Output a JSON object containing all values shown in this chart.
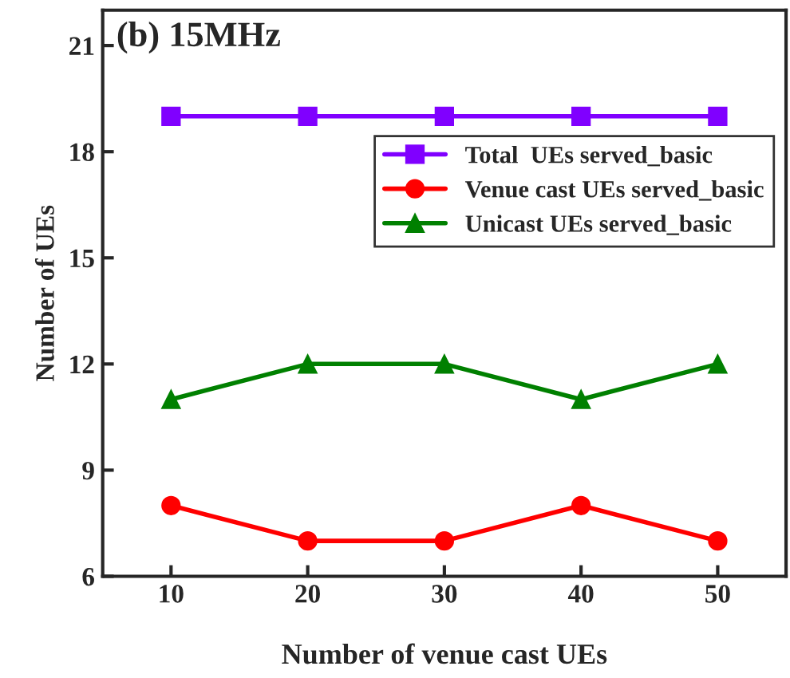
{
  "chart_data": {
    "type": "line",
    "xlabel": "Number of venue cast UEs",
    "ylabel": "Number of UEs",
    "annotations": [
      "(b) 15MHz"
    ],
    "x": [
      10,
      20,
      30,
      40,
      50
    ],
    "series": [
      {
        "name": "Total  UEs served_basic",
        "color": "#8000ff",
        "marker": "square",
        "values": [
          19,
          19,
          19,
          19,
          19
        ]
      },
      {
        "name": "Venue cast UEs served_basic",
        "color": "#ff0000",
        "marker": "circle",
        "values": [
          8,
          7,
          7,
          8,
          7
        ]
      },
      {
        "name": "Unicast UEs served_basic",
        "color": "#008000",
        "marker": "triangle",
        "values": [
          11,
          12,
          12,
          11,
          12
        ]
      }
    ],
    "xlim": [
      5,
      55
    ],
    "xticks": [
      10,
      20,
      30,
      40,
      50
    ],
    "ylim": [
      6,
      22
    ],
    "yticks": [
      6,
      9,
      12,
      15,
      18,
      21
    ],
    "grid": false,
    "legend": "right",
    "line_style": "solid"
  }
}
